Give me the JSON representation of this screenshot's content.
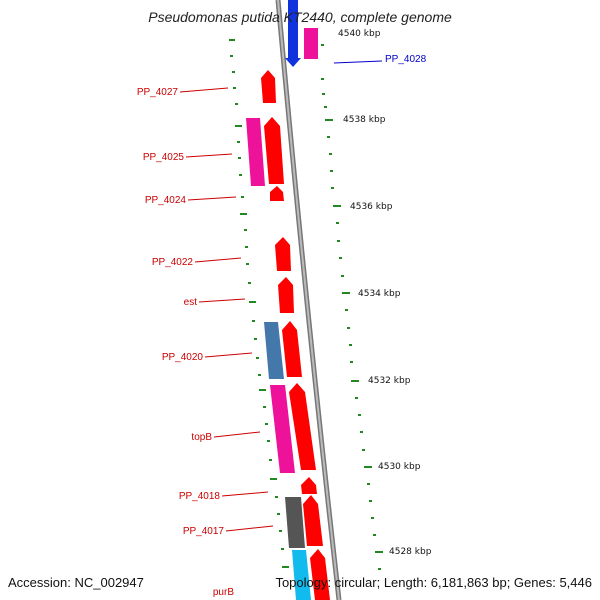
{
  "title": "Pseudomonas putida KT2440, complete genome",
  "footer": {
    "accession": "Accession: NC_002947",
    "topology": "Topology: circular; Length: 6,181,863 bp; Genes: 5,446"
  },
  "colors": {
    "forward_gene": "#ff0000",
    "reverse_pink": "#ee1199",
    "blue_gene": "#1133dd",
    "steel_gene": "#4477aa",
    "gray_gene": "#555555",
    "cyan_gene": "#11bbee",
    "tick": "#228822",
    "backbone": "#888888",
    "label_red": "#cc0000",
    "label_blue": "#0000cc"
  },
  "kbp_labels": [
    "4540 kbp",
    "4538 kbp",
    "4536 kbp",
    "4534 kbp",
    "4532 kbp",
    "4530 kbp",
    "4528 kbp"
  ],
  "gene_labels": [
    {
      "text": "PP_4028",
      "color": "#0000cc"
    },
    {
      "text": "PP_4027",
      "color": "#cc0000"
    },
    {
      "text": "PP_4025",
      "color": "#cc0000"
    },
    {
      "text": "PP_4024",
      "color": "#cc0000"
    },
    {
      "text": "PP_4022",
      "color": "#cc0000"
    },
    {
      "text": "est",
      "color": "#cc0000"
    },
    {
      "text": "PP_4020",
      "color": "#cc0000"
    },
    {
      "text": "topB",
      "color": "#cc0000"
    },
    {
      "text": "PP_4018",
      "color": "#cc0000"
    },
    {
      "text": "PP_4017",
      "color": "#cc0000"
    },
    {
      "text": "purB",
      "color": "#cc0000"
    }
  ]
}
